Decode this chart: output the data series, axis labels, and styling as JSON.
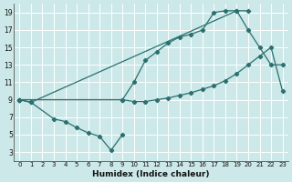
{
  "xlabel": "Humidex (Indice chaleur)",
  "background_color": "#cce8e8",
  "grid_color": "#ffffff",
  "line_color": "#2a7070",
  "xlim": [
    -0.5,
    23.5
  ],
  "ylim": [
    2,
    20
  ],
  "xticks": [
    0,
    1,
    2,
    3,
    4,
    5,
    6,
    7,
    8,
    9,
    10,
    11,
    12,
    13,
    14,
    15,
    16,
    17,
    18,
    19,
    20,
    21,
    22,
    23
  ],
  "yticks": [
    3,
    5,
    7,
    9,
    11,
    13,
    15,
    17,
    19
  ],
  "line1_x": [
    0,
    1,
    19,
    20
  ],
  "line1_y": [
    9.0,
    8.7,
    19.2,
    19.2
  ],
  "line2_x": [
    0,
    1,
    3,
    4,
    5,
    6,
    7,
    8,
    9
  ],
  "line2_y": [
    9.0,
    8.7,
    6.8,
    6.5,
    5.8,
    5.2,
    4.8,
    3.2,
    5.0
  ],
  "line3_x": [
    0,
    9,
    10,
    11,
    12,
    13,
    14,
    15,
    16,
    17,
    18,
    19,
    20,
    21,
    22,
    23
  ],
  "line3_y": [
    9.0,
    9.0,
    11.0,
    13.5,
    14.5,
    15.5,
    16.2,
    16.5,
    17.0,
    19.0,
    19.2,
    19.2,
    17.0,
    15.0,
    13.0,
    13.0
  ],
  "line4_x": [
    0,
    9,
    10,
    11,
    12,
    13,
    14,
    15,
    16,
    17,
    18,
    19,
    20,
    21,
    22,
    23
  ],
  "line4_y": [
    9.0,
    9.0,
    8.8,
    8.8,
    9.0,
    9.2,
    9.5,
    9.8,
    10.2,
    10.6,
    11.2,
    12.0,
    13.0,
    14.0,
    15.0,
    10.0
  ]
}
